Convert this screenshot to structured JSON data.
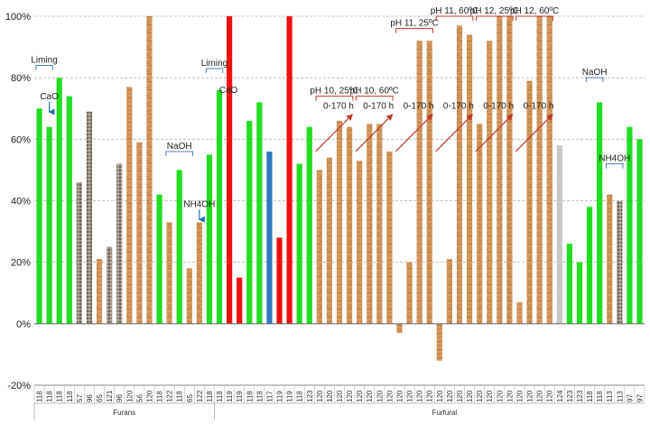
{
  "chart_data": {
    "type": "bar",
    "title": "",
    "xlabel": "",
    "ylabel": "",
    "ylim": [
      -20,
      100
    ],
    "y_ticks": [
      "-20%",
      "0%",
      "20%",
      "40%",
      "60%",
      "80%",
      "100%"
    ],
    "grid": "horizontal dashed",
    "groups": [
      {
        "label": "Furans",
        "start": 0,
        "end": 17
      },
      {
        "label": "Furfural",
        "start": 18,
        "end": 63
      }
    ],
    "bars": [
      {
        "cat": "118",
        "value": 70,
        "style": "green"
      },
      {
        "cat": "118",
        "value": 64,
        "style": "green"
      },
      {
        "cat": "118",
        "value": 80,
        "style": "green"
      },
      {
        "cat": "118",
        "value": 74,
        "style": "green"
      },
      {
        "cat": "57",
        "value": 46,
        "style": "gray-pattern"
      },
      {
        "cat": "96",
        "value": 69,
        "style": "gray-pattern"
      },
      {
        "cat": "65",
        "value": 21,
        "style": "wood"
      },
      {
        "cat": "121",
        "value": 25,
        "style": "gray-pattern"
      },
      {
        "cat": "96",
        "value": 52,
        "style": "gray-pattern"
      },
      {
        "cat": "120",
        "value": 77,
        "style": "wood"
      },
      {
        "cat": "56",
        "value": 59,
        "style": "wood"
      },
      {
        "cat": "120",
        "value": 100,
        "style": "wood"
      },
      {
        "cat": "118",
        "value": 42,
        "style": "green"
      },
      {
        "cat": "122",
        "value": 33,
        "style": "wood"
      },
      {
        "cat": "118",
        "value": 50,
        "style": "green"
      },
      {
        "cat": "65",
        "value": 18,
        "style": "wood"
      },
      {
        "cat": "122",
        "value": 33,
        "style": "wood"
      },
      {
        "cat": "118",
        "value": 55,
        "style": "green"
      },
      {
        "cat": "118",
        "value": 76,
        "style": "green"
      },
      {
        "cat": "119",
        "value": 100,
        "style": "red"
      },
      {
        "cat": "119",
        "value": 15,
        "style": "red"
      },
      {
        "cat": "118",
        "value": 66,
        "style": "green"
      },
      {
        "cat": "118",
        "value": 72,
        "style": "green"
      },
      {
        "cat": "117",
        "value": 56,
        "style": "blue"
      },
      {
        "cat": "119",
        "value": 28,
        "style": "red"
      },
      {
        "cat": "119",
        "value": 100,
        "style": "red"
      },
      {
        "cat": "118",
        "value": 52,
        "style": "green"
      },
      {
        "cat": "123",
        "value": 64,
        "style": "green"
      },
      {
        "cat": "120",
        "value": 50,
        "style": "wood"
      },
      {
        "cat": "120",
        "value": 54,
        "style": "wood"
      },
      {
        "cat": "120",
        "value": 66,
        "style": "wood"
      },
      {
        "cat": "120",
        "value": 64,
        "style": "wood"
      },
      {
        "cat": "120",
        "value": 53,
        "style": "wood"
      },
      {
        "cat": "120",
        "value": 65,
        "style": "wood"
      },
      {
        "cat": "120",
        "value": 65,
        "style": "wood"
      },
      {
        "cat": "120",
        "value": 56,
        "style": "wood"
      },
      {
        "cat": "120",
        "value": -3,
        "style": "wood"
      },
      {
        "cat": "120",
        "value": 20,
        "style": "wood"
      },
      {
        "cat": "120",
        "value": 92,
        "style": "wood"
      },
      {
        "cat": "120",
        "value": 92,
        "style": "wood"
      },
      {
        "cat": "120",
        "value": -12,
        "style": "wood"
      },
      {
        "cat": "120",
        "value": 21,
        "style": "wood"
      },
      {
        "cat": "120",
        "value": 97,
        "style": "wood"
      },
      {
        "cat": "120",
        "value": 94,
        "style": "wood"
      },
      {
        "cat": "120",
        "value": 65,
        "style": "wood"
      },
      {
        "cat": "120",
        "value": 92,
        "style": "wood"
      },
      {
        "cat": "120",
        "value": 100,
        "style": "wood"
      },
      {
        "cat": "120",
        "value": 100,
        "style": "wood"
      },
      {
        "cat": "120",
        "value": 7,
        "style": "wood"
      },
      {
        "cat": "120",
        "value": 79,
        "style": "wood"
      },
      {
        "cat": "120",
        "value": 100,
        "style": "wood"
      },
      {
        "cat": "120",
        "value": 100,
        "style": "wood"
      },
      {
        "cat": "124",
        "value": 58,
        "style": "lightgray"
      },
      {
        "cat": "123",
        "value": 26,
        "style": "green"
      },
      {
        "cat": "123",
        "value": 20,
        "style": "green"
      },
      {
        "cat": "118",
        "value": 38,
        "style": "green"
      },
      {
        "cat": "118",
        "value": 72,
        "style": "green"
      },
      {
        "cat": "113",
        "value": 42,
        "style": "wood"
      },
      {
        "cat": "113",
        "value": 40,
        "style": "gray-pattern"
      },
      {
        "cat": "97",
        "value": 64,
        "style": "green"
      },
      {
        "cat": "97",
        "value": 60,
        "style": "green"
      }
    ],
    "annotations": [
      {
        "text": "Liming",
        "kind": "bracket",
        "from": 0,
        "to": 1,
        "y": 84
      },
      {
        "text": "CaO",
        "kind": "down-arrow",
        "at": 1,
        "y": 73
      },
      {
        "text": "Liming",
        "kind": "bracket",
        "from": 17,
        "to": 18,
        "y": 83
      },
      {
        "text": "CaO",
        "kind": "label",
        "at": 18,
        "y": 75
      },
      {
        "text": "NaOH",
        "kind": "bracket",
        "from": 13,
        "to": 15,
        "y": 56
      },
      {
        "text": "NH4OH",
        "kind": "down-arrow",
        "at": 16,
        "y": 38
      },
      {
        "text": "pH 10, 25ºC",
        "kind": "bracket",
        "from": 28,
        "to": 31,
        "y": 74
      },
      {
        "text": "pH 10, 60ºC",
        "kind": "bracket",
        "from": 32,
        "to": 35,
        "y": 74
      },
      {
        "text": "pH 11, 25ºC",
        "kind": "bracket",
        "from": 36,
        "to": 39,
        "y": 96
      },
      {
        "text": "pH 11, 60ºC",
        "kind": "bracket",
        "from": 40,
        "to": 43,
        "y": 100
      },
      {
        "text": "pH 12, 25ºC",
        "kind": "bracket",
        "from": 44,
        "to": 47,
        "y": 100
      },
      {
        "text": "pH 12, 60ºC",
        "kind": "bracket",
        "from": 48,
        "to": 51,
        "y": 100
      },
      {
        "text": "0-170 h",
        "kind": "time-arrow",
        "from": 28,
        "to": 31,
        "y": 70
      },
      {
        "text": "0-170 h",
        "kind": "time-arrow",
        "from": 32,
        "to": 35,
        "y": 70
      },
      {
        "text": "0-170 h",
        "kind": "time-arrow",
        "from": 36,
        "to": 39,
        "y": 70
      },
      {
        "text": "0-170 h",
        "kind": "time-arrow",
        "from": 40,
        "to": 43,
        "y": 70
      },
      {
        "text": "0-170 h",
        "kind": "time-arrow",
        "from": 44,
        "to": 47,
        "y": 70
      },
      {
        "text": "0-170 h",
        "kind": "time-arrow",
        "from": 48,
        "to": 51,
        "y": 70
      },
      {
        "text": "NaOH",
        "kind": "bracket",
        "from": 55,
        "to": 56,
        "y": 80
      },
      {
        "text": "NH4OH",
        "kind": "bracket",
        "from": 57,
        "to": 58,
        "y": 52
      }
    ],
    "colors": {
      "green": "#22dd22",
      "red": "#ee1111",
      "blue": "#2f79bf",
      "lightgray": "#c8c8c8",
      "wood": "#d39a5e",
      "wood_dark": "#a8662e",
      "gray_pattern": "#8f8375",
      "arrow_red": "#c0392b",
      "arrow_blue": "#2c6fb5",
      "bracket": "#4a7fb5"
    }
  }
}
